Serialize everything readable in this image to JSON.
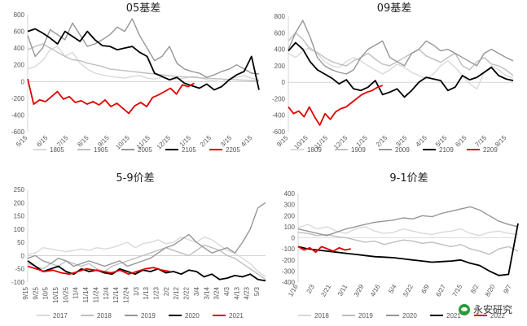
{
  "chart_data": [
    {
      "type": "line",
      "title": "05基差",
      "ylim": [
        -600,
        800
      ],
      "yticks": [
        "800",
        "600",
        "400",
        "200",
        "0",
        "-200",
        "-400",
        "-600"
      ],
      "xticks": [
        "5/15",
        "6/15",
        "7/15",
        "8/15",
        "9/15",
        "10/15",
        "11/15",
        "12/15",
        "1/15",
        "2/15",
        "3/15",
        "4/15"
      ],
      "series": [
        {
          "name": "1805",
          "color": "#d9d9d9",
          "values": [
            150,
            180,
            250,
            380,
            420,
            300,
            350,
            220,
            150,
            100,
            80,
            60,
            50,
            40,
            60,
            70,
            40,
            30,
            50,
            20,
            30,
            40,
            60,
            50,
            20,
            10,
            0,
            30,
            50,
            70,
            40,
            20
          ]
        },
        {
          "name": "1905",
          "color": "#bfbfbf",
          "values": [
            380,
            420,
            450,
            400,
            350,
            300,
            260,
            250,
            220,
            200,
            180,
            150,
            140,
            130,
            120,
            110,
            100,
            90,
            80,
            70,
            60,
            55,
            50,
            45,
            40,
            35,
            30,
            25,
            20,
            15,
            10,
            10
          ]
        },
        {
          "name": "2005",
          "color": "#969696",
          "values": [
            550,
            300,
            400,
            620,
            560,
            500,
            700,
            560,
            420,
            450,
            500,
            560,
            650,
            600,
            750,
            550,
            400,
            250,
            300,
            420,
            220,
            150,
            120,
            100,
            50,
            80,
            120,
            150,
            200,
            150,
            100,
            90
          ]
        },
        {
          "name": "2105",
          "color": "#000000",
          "values": [
            600,
            630,
            580,
            520,
            450,
            600,
            540,
            480,
            600,
            500,
            430,
            420,
            380,
            400,
            420,
            350,
            300,
            100,
            60,
            20,
            50,
            -20,
            -50,
            -80,
            -30,
            -100,
            -60,
            20,
            80,
            120,
            300,
            -100
          ]
        },
        {
          "name": "2205",
          "color": "#e00000",
          "x_end_fraction": 0.72,
          "values": [
            30,
            -270,
            -220,
            -240,
            -180,
            -120,
            -210,
            -180,
            -250,
            -230,
            -270,
            -240,
            -280,
            -220,
            -300,
            -260,
            -320,
            -380,
            -290,
            -250,
            -300,
            -190,
            -160,
            -120,
            -80,
            -150,
            -40,
            -60,
            -20
          ]
        }
      ]
    },
    {
      "type": "line",
      "title": "09基差",
      "ylim": [
        -600,
        800
      ],
      "yticks": [
        "800",
        "600",
        "400",
        "200",
        "0",
        "-200",
        "-400",
        "-600"
      ],
      "xticks": [
        "9/15",
        "10/15",
        "11/15",
        "12/15",
        "1/15",
        "2/15",
        "3/15",
        "4/15",
        "5/15",
        "6/15",
        "7/15",
        "8/15"
      ],
      "series": [
        {
          "name": "1809",
          "color": "#d9d9d9",
          "values": [
            350,
            300,
            380,
            420,
            350,
            250,
            200,
            180,
            250,
            300,
            260,
            200,
            150,
            100,
            150,
            220,
            180,
            120,
            80,
            40,
            100,
            200,
            260,
            180,
            80,
            -20,
            -80,
            120,
            200,
            150,
            80,
            50
          ]
        },
        {
          "name": "1909",
          "color": "#bfbfbf",
          "values": [
            500,
            600,
            520,
            400,
            360,
            300,
            250,
            220,
            200,
            260,
            300,
            350,
            280,
            220,
            200,
            250,
            300,
            350,
            400,
            320,
            280,
            240,
            300,
            350,
            200,
            150,
            250,
            300,
            220,
            200,
            150,
            80
          ]
        },
        {
          "name": "2009",
          "color": "#969696",
          "values": [
            400,
            600,
            750,
            550,
            300,
            200,
            150,
            120,
            100,
            150,
            300,
            400,
            450,
            500,
            300,
            250,
            200,
            350,
            400,
            500,
            450,
            380,
            400,
            350,
            300,
            250,
            200,
            350,
            400,
            350,
            300,
            260
          ]
        },
        {
          "name": "2109",
          "color": "#000000",
          "values": [
            380,
            480,
            400,
            250,
            150,
            100,
            50,
            -20,
            30,
            -80,
            -100,
            -60,
            20,
            -150,
            -120,
            -80,
            -180,
            -100,
            0,
            60,
            40,
            20,
            -100,
            -60,
            80,
            30,
            60,
            120,
            180,
            80,
            40,
            20
          ]
        },
        {
          "name": "2209",
          "color": "#e00000",
          "x_end_fraction": 0.42,
          "values": [
            -300,
            -380,
            -350,
            -420,
            -300,
            -420,
            -520,
            -380,
            -450,
            -360,
            -320,
            -300,
            -250,
            -200,
            -150,
            -120,
            -100,
            -60,
            -40
          ]
        }
      ]
    },
    {
      "type": "line",
      "title": "5-9价差",
      "ylim": [
        -100,
        250
      ],
      "yticks": [
        "250",
        "200",
        "150",
        "100",
        "50",
        "0",
        "-50",
        "-100"
      ],
      "xticks": [
        "9/15",
        "9/25",
        "10/5",
        "10/15",
        "10/25",
        "11/4",
        "11/14",
        "11/24",
        "12/4",
        "12/14",
        "12/24",
        "1/3",
        "1/13",
        "1/23",
        "2/2",
        "2/12",
        "2/22",
        "3/4",
        "3/14",
        "3/24",
        "4/3",
        "4/13",
        "4/23",
        "5/3"
      ],
      "series": [
        {
          "name": "2017",
          "color": "#d9d9d9",
          "values": [
            5,
            10,
            30,
            25,
            20,
            15,
            20,
            25,
            20,
            30,
            25,
            30,
            40,
            50,
            30,
            45,
            50,
            60,
            45,
            50,
            70,
            60,
            50,
            70,
            60,
            40,
            20,
            10,
            -10,
            -30,
            -60,
            -80
          ]
        },
        {
          "name": "2018",
          "color": "#bfbfbf",
          "values": [
            -30,
            -40,
            -50,
            -30,
            -40,
            -20,
            -30,
            -40,
            -30,
            -50,
            -60,
            -40,
            -30,
            -20,
            -10,
            0,
            10,
            20,
            30,
            20,
            10,
            0,
            20,
            40,
            30,
            20,
            0,
            -10,
            -30,
            -50,
            -70,
            -90
          ]
        },
        {
          "name": "2019",
          "color": "#969696",
          "values": [
            -10,
            0,
            -20,
            -30,
            -10,
            -20,
            -40,
            -30,
            -20,
            -30,
            -40,
            -30,
            -20,
            -40,
            -30,
            -20,
            -10,
            10,
            30,
            40,
            60,
            80,
            50,
            30,
            10,
            20,
            30,
            10,
            50,
            100,
            180,
            200
          ]
        },
        {
          "name": "2020",
          "color": "#000000",
          "values": [
            -20,
            -40,
            -60,
            -50,
            -40,
            -60,
            -70,
            -50,
            -60,
            -55,
            -65,
            -70,
            -50,
            -60,
            -70,
            -55,
            -60,
            -50,
            -65,
            -60,
            -70,
            -55,
            -60,
            -80,
            -70,
            -90,
            -85,
            -75,
            -80,
            -70,
            -90,
            -95
          ]
        },
        {
          "name": "2021",
          "color": "#e00000",
          "x_end_fraction": 0.6,
          "values": [
            -40,
            -50,
            -60,
            -55,
            -65,
            -70,
            -60,
            -50,
            -55,
            -60,
            -65,
            -55,
            -70,
            -60,
            -50,
            -45,
            -55,
            -60
          ]
        }
      ]
    },
    {
      "type": "line",
      "title": "9-1价差",
      "ylim": [
        -400,
        400
      ],
      "yticks": [
        "400",
        "300",
        "200",
        "100",
        "0",
        "-100",
        "-200",
        "-300",
        "-400"
      ],
      "xticks": [
        "1/16",
        "2/3",
        "2/21",
        "3/11",
        "3/29",
        "4/16",
        "5/4",
        "5/22",
        "6/9",
        "6/27",
        "7/15",
        "8/2",
        "8/20",
        "9/7"
      ],
      "series": [
        {
          "name": "2018",
          "color": "#d9d9d9",
          "values": [
            90,
            120,
            80,
            100,
            60,
            40,
            80,
            100,
            60,
            40,
            50,
            80,
            60,
            40,
            30,
            50,
            60,
            80,
            40,
            20,
            50,
            60,
            40,
            30
          ]
        },
        {
          "name": "2019",
          "color": "#bfbfbf",
          "values": [
            50,
            40,
            20,
            30,
            10,
            0,
            -20,
            -40,
            -30,
            -60,
            -40,
            -20,
            -30,
            -50,
            -40,
            -60,
            -80,
            -60,
            -100,
            -120,
            -150,
            -100,
            -80,
            -120
          ]
        },
        {
          "name": "2020",
          "color": "#969696",
          "values": [
            80,
            60,
            40,
            20,
            50,
            80,
            100,
            120,
            140,
            150,
            160,
            180,
            170,
            200,
            190,
            220,
            240,
            260,
            280,
            250,
            200,
            150,
            120,
            100
          ]
        },
        {
          "name": "2021",
          "color": "#000000",
          "values": [
            -80,
            -100,
            -110,
            -120,
            -130,
            -140,
            -150,
            -160,
            -170,
            -175,
            -180,
            -190,
            -200,
            -210,
            -220,
            -215,
            -210,
            -200,
            -230,
            -250,
            -300,
            -340,
            -330,
            130
          ]
        },
        {
          "name": "2022",
          "color": "#e00000",
          "x_end_fraction": 0.24,
          "values": [
            -80,
            -110,
            -90,
            -130,
            -80,
            -100,
            -120,
            -90,
            -110,
            -100
          ]
        }
      ]
    }
  ],
  "watermark": {
    "text": "永安研究",
    "icon": "wechat-icon"
  }
}
